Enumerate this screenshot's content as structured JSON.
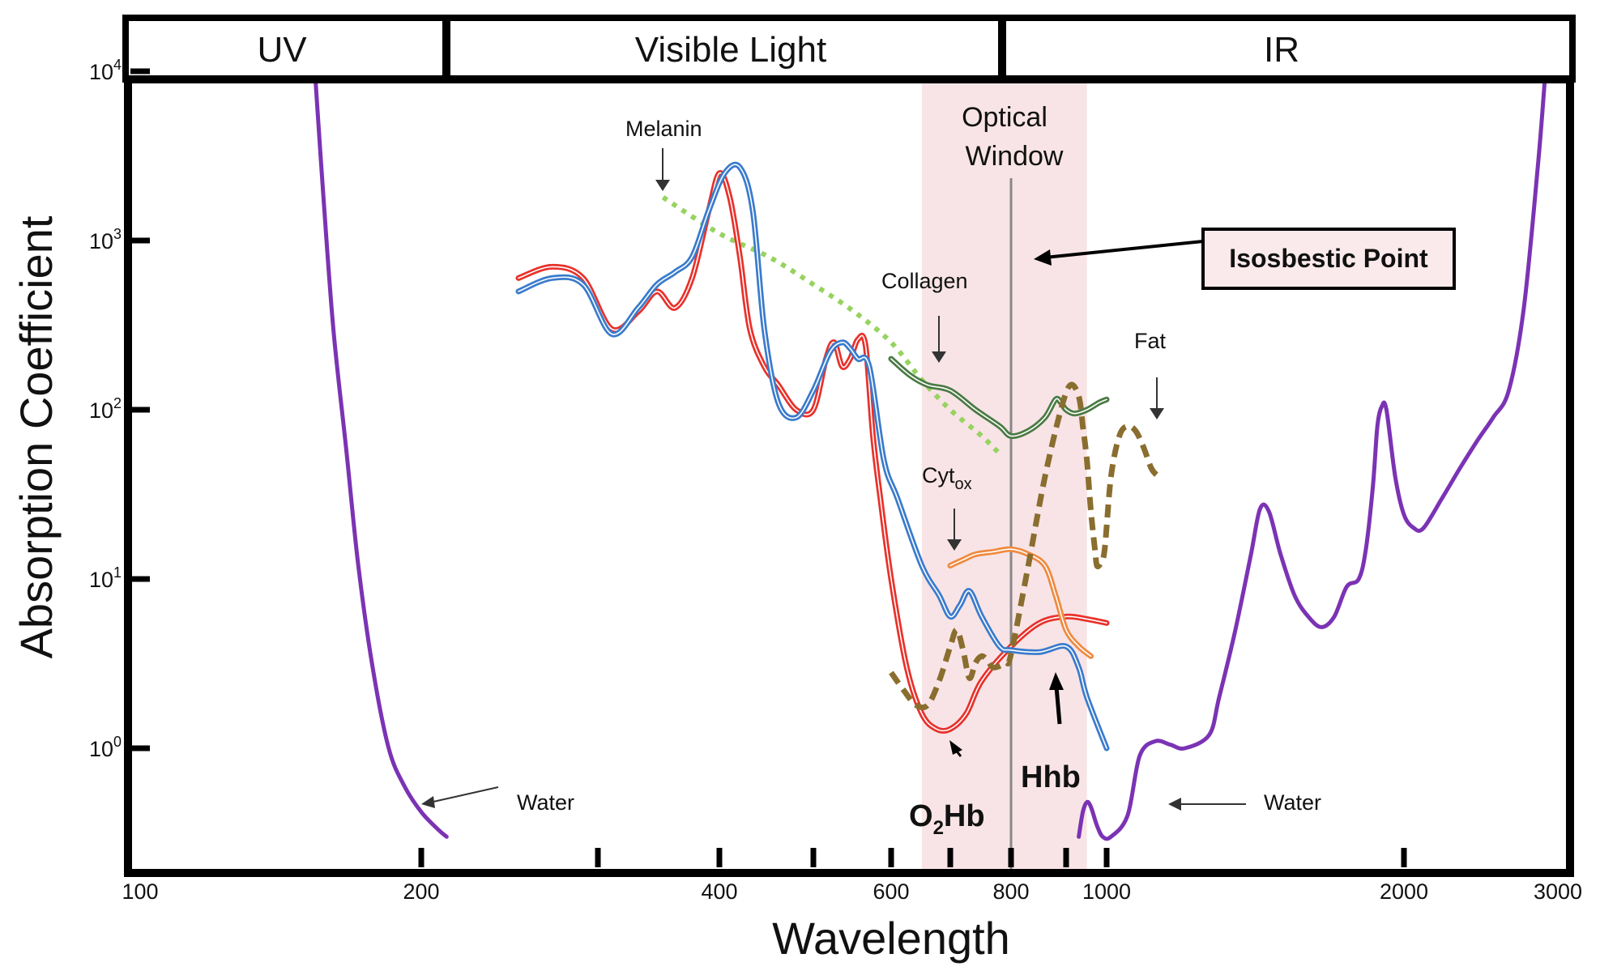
{
  "chart_data": {
    "type": "line",
    "title": "",
    "xlabel": "Wavelength",
    "ylabel": "Absorption Coefficient",
    "x_scale": "log",
    "y_scale": "log",
    "xlim": [
      100,
      3000
    ],
    "ylim": [
      0.3,
      10000
    ],
    "x_ticks": [
      100,
      200,
      400,
      600,
      800,
      1000,
      2000,
      3000
    ],
    "x_minor_ticks": [
      300,
      500,
      700,
      900
    ],
    "y_ticks": [
      {
        "value": 1,
        "base": "10",
        "exp": "0"
      },
      {
        "value": 10,
        "base": "10",
        "exp": "1"
      },
      {
        "value": 100,
        "base": "10",
        "exp": "2"
      },
      {
        "value": 1000,
        "base": "10",
        "exp": "3"
      },
      {
        "value": 10000,
        "base": "10",
        "exp": "4"
      }
    ],
    "bands": [
      {
        "name": "UV",
        "from": 100,
        "to": 210
      },
      {
        "name": "Visible Light",
        "from": 210,
        "to": 800
      },
      {
        "name": "IR",
        "from": 800,
        "to": 3000
      }
    ],
    "optical_window": {
      "label_line1": "Optical",
      "label_line2": "Window",
      "from": 650,
      "to": 950,
      "color": "#f8e4e6"
    },
    "isosbestic": {
      "label": "Isosbestic Point",
      "x": 800
    },
    "series": [
      {
        "name": "Water",
        "color": "#7b33b4",
        "style": "solid",
        "x": [
          155,
          158,
          162,
          167,
          172,
          178,
          185,
          192,
          200,
          208,
          212
        ],
        "y": [
          10000,
          2000,
          300,
          60,
          12,
          3,
          1,
          0.6,
          0.42,
          0.33,
          0.3
        ]
      },
      {
        "name": "Water",
        "color": "#7b33b4",
        "style": "solid",
        "x": [
          930,
          940,
          950,
          960,
          975,
          990,
          1010,
          1050,
          1080,
          1120,
          1160,
          1200,
          1270,
          1300,
          1350,
          1400,
          1430,
          1460,
          1500,
          1550,
          1600,
          1650,
          1700,
          1750,
          1800,
          1830,
          1860,
          1880,
          1900,
          1920,
          1960,
          2000,
          2050,
          2100,
          2200,
          2300,
          2400,
          2500,
          2600,
          2700,
          2800,
          2850
        ],
        "y": [
          0.3,
          0.42,
          0.48,
          0.45,
          0.35,
          0.3,
          0.3,
          0.4,
          0.9,
          1.1,
          1.05,
          1.0,
          1.2,
          2,
          5,
          14,
          26,
          25,
          14,
          8,
          6,
          5.2,
          6,
          9,
          10,
          15,
          35,
          80,
          105,
          100,
          40,
          24,
          20,
          20,
          30,
          45,
          65,
          90,
          130,
          400,
          3000,
          10000
        ]
      },
      {
        "name": "Melanin",
        "color": "#96d35f",
        "style": "dotted",
        "x": [
          350,
          400,
          450,
          500,
          550,
          600,
          650,
          700,
          750,
          780
        ],
        "y": [
          1800,
          1100,
          800,
          550,
          380,
          250,
          150,
          100,
          70,
          55
        ]
      },
      {
        "name": "O2Hb",
        "color": "#e8312b",
        "style": "solid-double",
        "x": [
          250,
          270,
          290,
          310,
          330,
          345,
          360,
          375,
          390,
          400,
          410,
          420,
          430,
          445,
          460,
          480,
          500,
          515,
          525,
          535,
          545,
          555,
          565,
          575,
          585,
          600,
          625,
          650,
          675,
          700,
          725,
          750,
          800,
          850,
          900,
          950,
          1000
        ],
        "y": [
          600,
          700,
          600,
          300,
          380,
          500,
          400,
          600,
          1500,
          2500,
          1800,
          800,
          300,
          180,
          140,
          100,
          100,
          200,
          250,
          180,
          200,
          260,
          240,
          70,
          30,
          10,
          3,
          1.6,
          1.3,
          1.3,
          1.6,
          2.5,
          4,
          5.5,
          6,
          5.8,
          5.5
        ]
      },
      {
        "name": "Hhb",
        "color": "#3a7bcc",
        "style": "solid-double",
        "x": [
          250,
          270,
          290,
          310,
          330,
          345,
          360,
          375,
          390,
          405,
          420,
          433,
          445,
          460,
          480,
          500,
          520,
          535,
          545,
          555,
          570,
          590,
          610,
          650,
          680,
          700,
          715,
          730,
          750,
          780,
          800,
          850,
          900,
          930,
          950,
          1000
        ],
        "y": [
          500,
          600,
          550,
          280,
          400,
          550,
          650,
          800,
          1500,
          2500,
          2700,
          1500,
          300,
          110,
          90,
          130,
          220,
          250,
          230,
          200,
          180,
          50,
          30,
          12,
          8,
          6,
          7,
          8.5,
          6,
          4,
          3.8,
          3.7,
          4,
          3,
          2,
          1
        ]
      },
      {
        "name": "Collagen",
        "color": "#4a7a43",
        "style": "solid-double",
        "x": [
          600,
          630,
          660,
          700,
          740,
          780,
          800,
          830,
          860,
          880,
          890,
          900,
          920,
          950,
          980,
          1000
        ],
        "y": [
          200,
          160,
          140,
          130,
          100,
          80,
          70,
          75,
          90,
          115,
          110,
          100,
          95,
          100,
          110,
          115
        ]
      },
      {
        "name": "Cytox",
        "color": "#ef8a3f",
        "style": "solid-double",
        "x": [
          700,
          720,
          740,
          770,
          800,
          830,
          860,
          880,
          900,
          930,
          960
        ],
        "y": [
          12,
          13,
          14,
          14.5,
          15,
          14,
          12,
          8,
          5,
          4,
          3.5
        ]
      },
      {
        "name": "Fat",
        "color": "#8a6e2f",
        "style": "dashed",
        "x": [
          600,
          620,
          640,
          660,
          680,
          700,
          710,
          720,
          730,
          740,
          750,
          760,
          770,
          790,
          800,
          830,
          860,
          890,
          910,
          930,
          940,
          950,
          960,
          970,
          975,
          985,
          995,
          1010,
          1030,
          1050,
          1070,
          1090,
          1110,
          1130
        ],
        "y": [
          2.8,
          2.2,
          1.8,
          1.8,
          2.5,
          4,
          5,
          3.8,
          2.6,
          3.2,
          3.5,
          3.3,
          3,
          3.2,
          3.6,
          12,
          40,
          100,
          140,
          120,
          80,
          50,
          25,
          15,
          12,
          12.5,
          15,
          40,
          70,
          80,
          75,
          60,
          45,
          40
        ]
      }
    ],
    "annotations": [
      {
        "label": "Melanin",
        "target": "Melanin"
      },
      {
        "label": "Collagen",
        "target": "Collagen"
      },
      {
        "label": "Fat",
        "target": "Fat"
      },
      {
        "label_main": "Cyt",
        "label_sub": "ox",
        "target": "Cytox"
      },
      {
        "label": "Water",
        "target": "Water (UV)"
      },
      {
        "label": "Water",
        "target": "Water (IR)"
      },
      {
        "label_main": "O",
        "label_sub": "2",
        "label_rest": "Hb",
        "target": "O2Hb"
      },
      {
        "label": "Hhb",
        "target": "Hhb"
      }
    ]
  }
}
